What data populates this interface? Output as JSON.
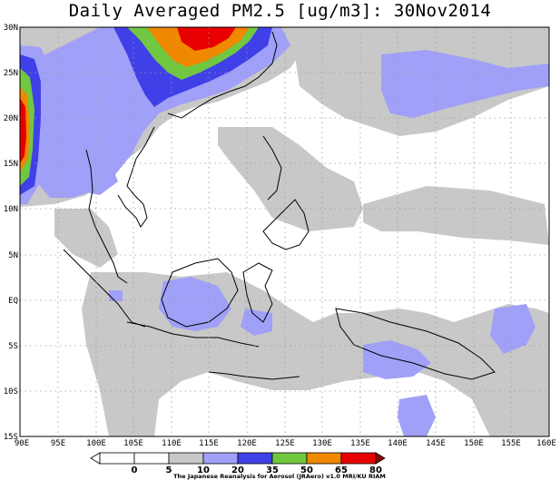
{
  "title": "Daily Averaged PM2.5 [ug/m3]: 30Nov2014",
  "credit": "The Japanese Reanalysis for Aerosol (JRAero) v1.0 MRI/KU RIAM",
  "map": {
    "lon_range": [
      90,
      160
    ],
    "lat_range": [
      -15,
      30
    ],
    "lat_ticks": [
      "30N",
      "25N",
      "20N",
      "15N",
      "10N",
      "5N",
      "EQ",
      "5S",
      "10S",
      "15S"
    ],
    "lon_ticks": [
      "90E",
      "95E",
      "100E",
      "105E",
      "110E",
      "115E",
      "120E",
      "125E",
      "130E",
      "135E",
      "140E",
      "145E",
      "150E",
      "155E",
      "160E"
    ],
    "grid": "dotted every 5 degrees"
  },
  "colorbar": {
    "levels": [
      "0",
      "5",
      "10",
      "20",
      "35",
      "50",
      "65",
      "80"
    ],
    "colors": [
      "#ffffff",
      "#ffffff",
      "#c8c8c8",
      "#a0a0f8",
      "#4040e8",
      "#70c840",
      "#f08800",
      "#e80000",
      "#900000"
    ]
  }
}
